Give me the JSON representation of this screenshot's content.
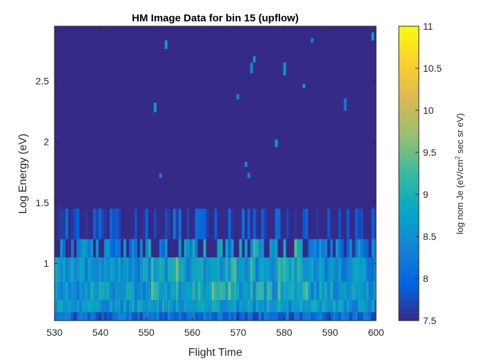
{
  "chart_data": {
    "type": "heatmap",
    "title": "HM Image Data for bin 15 (upflow)",
    "xlabel": "Flight Time",
    "ylabel": "Log Energy (eV)",
    "xlim": [
      530,
      600
    ],
    "ylim": [
      0.53,
      2.95
    ],
    "xticks": [
      530,
      540,
      550,
      560,
      570,
      580,
      590,
      600
    ],
    "yticks": [
      1,
      1.5,
      2,
      2.5
    ],
    "ytick_labels": [
      "1",
      "1.5",
      "2",
      "2.5"
    ],
    "colorbar": {
      "label_main": "log nom Je (eV/cm",
      "label_sup": "2",
      "label_tail": " sec sr eV)",
      "range": [
        7.5,
        11
      ],
      "ticks": [
        7.5,
        8,
        8.5,
        9,
        9.5,
        10,
        10.5,
        11
      ],
      "tick_labels": [
        "7.5",
        "8",
        "8.5",
        "9",
        "9.5",
        "10",
        "10.5",
        "11"
      ],
      "colormap": "parula"
    },
    "energy_bands": [
      {
        "energy_range": [
          0.53,
          0.6
        ],
        "typical_value": 8.0
      },
      {
        "energy_range": [
          0.6,
          0.7
        ],
        "typical_value": 8.6
      },
      {
        "energy_range": [
          0.7,
          0.85
        ],
        "typical_value": 8.6
      },
      {
        "energy_range": [
          0.85,
          1.05
        ],
        "typical_value": 8.5
      },
      {
        "energy_range": [
          1.05,
          1.2
        ],
        "typical_value": 8.3
      },
      {
        "energy_range": [
          1.2,
          1.45
        ],
        "typical_value": 7.8
      },
      {
        "energy_range": [
          1.45,
          2.95
        ],
        "typical_value": 7.5
      }
    ],
    "peak_region": {
      "x_range": [
        550,
        585
      ],
      "energy_range": [
        0.7,
        1.2
      ],
      "peak_value": 9.2
    },
    "background_value": 7.5,
    "grid": false
  }
}
